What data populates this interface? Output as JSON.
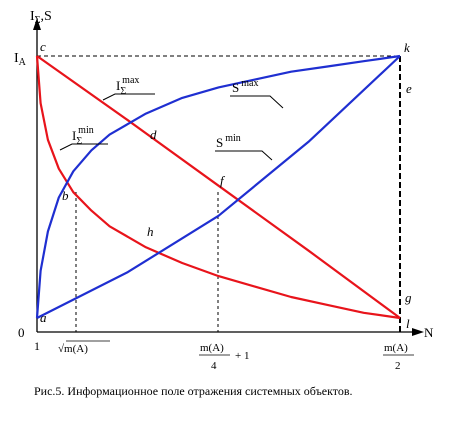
{
  "chart_data": {
    "type": "line",
    "y_axis_label": {
      "main": "I",
      "sub": "Σ",
      "suffix": ",S"
    },
    "x_axis_label": "N",
    "origin_label": "0",
    "y_tick_label": {
      "main": "I",
      "sub": "A"
    },
    "x_tick_one": "1",
    "x_tick_sqrt": "√m(A)",
    "x_tick_quarter": {
      "num": "m(A)",
      "den": "4",
      "plus": "+ 1"
    },
    "x_tick_half": {
      "num": "m(A)",
      "den": "2"
    },
    "colors": {
      "i_curves": "#e8141b",
      "s_curves": "#1f2fd1",
      "axes": "#000000"
    },
    "point_labels": {
      "a": "a",
      "b": "b",
      "c": "c",
      "d": "d",
      "e": "e",
      "f": "f",
      "g": "g",
      "h": "h",
      "k": "k",
      "l": "l"
    },
    "curve_labels": {
      "i_max": {
        "main": "I",
        "sub": "Σ",
        "sup": "max"
      },
      "i_min": {
        "main": "I",
        "sub": "Σ",
        "sup": "min"
      },
      "s_max": {
        "main": "S",
        "sup": "max"
      },
      "s_min": {
        "main": "S",
        "sup": "min"
      }
    },
    "series": [
      {
        "key": "i_max",
        "color": "#e8141b",
        "x": [
          0,
          0.25,
          0.5,
          0.75,
          1
        ],
        "y": [
          1,
          0.755,
          0.505,
          0.255,
          0
        ]
      },
      {
        "key": "i_min",
        "color": "#e8141b",
        "x": [
          0,
          0.01,
          0.03,
          0.06,
          0.1,
          0.15,
          0.2,
          0.3,
          0.4,
          0.5,
          0.6,
          0.7,
          0.8,
          0.9,
          1
        ],
        "y": [
          1,
          0.82,
          0.68,
          0.57,
          0.48,
          0.41,
          0.35,
          0.27,
          0.21,
          0.16,
          0.12,
          0.08,
          0.05,
          0.02,
          0
        ]
      },
      {
        "key": "s_max",
        "color": "#1f2fd1",
        "x": [
          0,
          0.01,
          0.03,
          0.06,
          0.1,
          0.15,
          0.2,
          0.3,
          0.4,
          0.5,
          0.6,
          0.7,
          0.8,
          0.9,
          1
        ],
        "y": [
          0,
          0.18,
          0.33,
          0.46,
          0.56,
          0.64,
          0.7,
          0.78,
          0.84,
          0.88,
          0.91,
          0.94,
          0.96,
          0.98,
          1
        ]
      },
      {
        "key": "s_min",
        "color": "#1f2fd1",
        "x": [
          0,
          0.25,
          0.5,
          0.75,
          1
        ],
        "y": [
          0,
          0.175,
          0.39,
          0.675,
          1
        ]
      }
    ]
  },
  "caption": "Рис.5.  Информационное поле отражения системных объектов."
}
